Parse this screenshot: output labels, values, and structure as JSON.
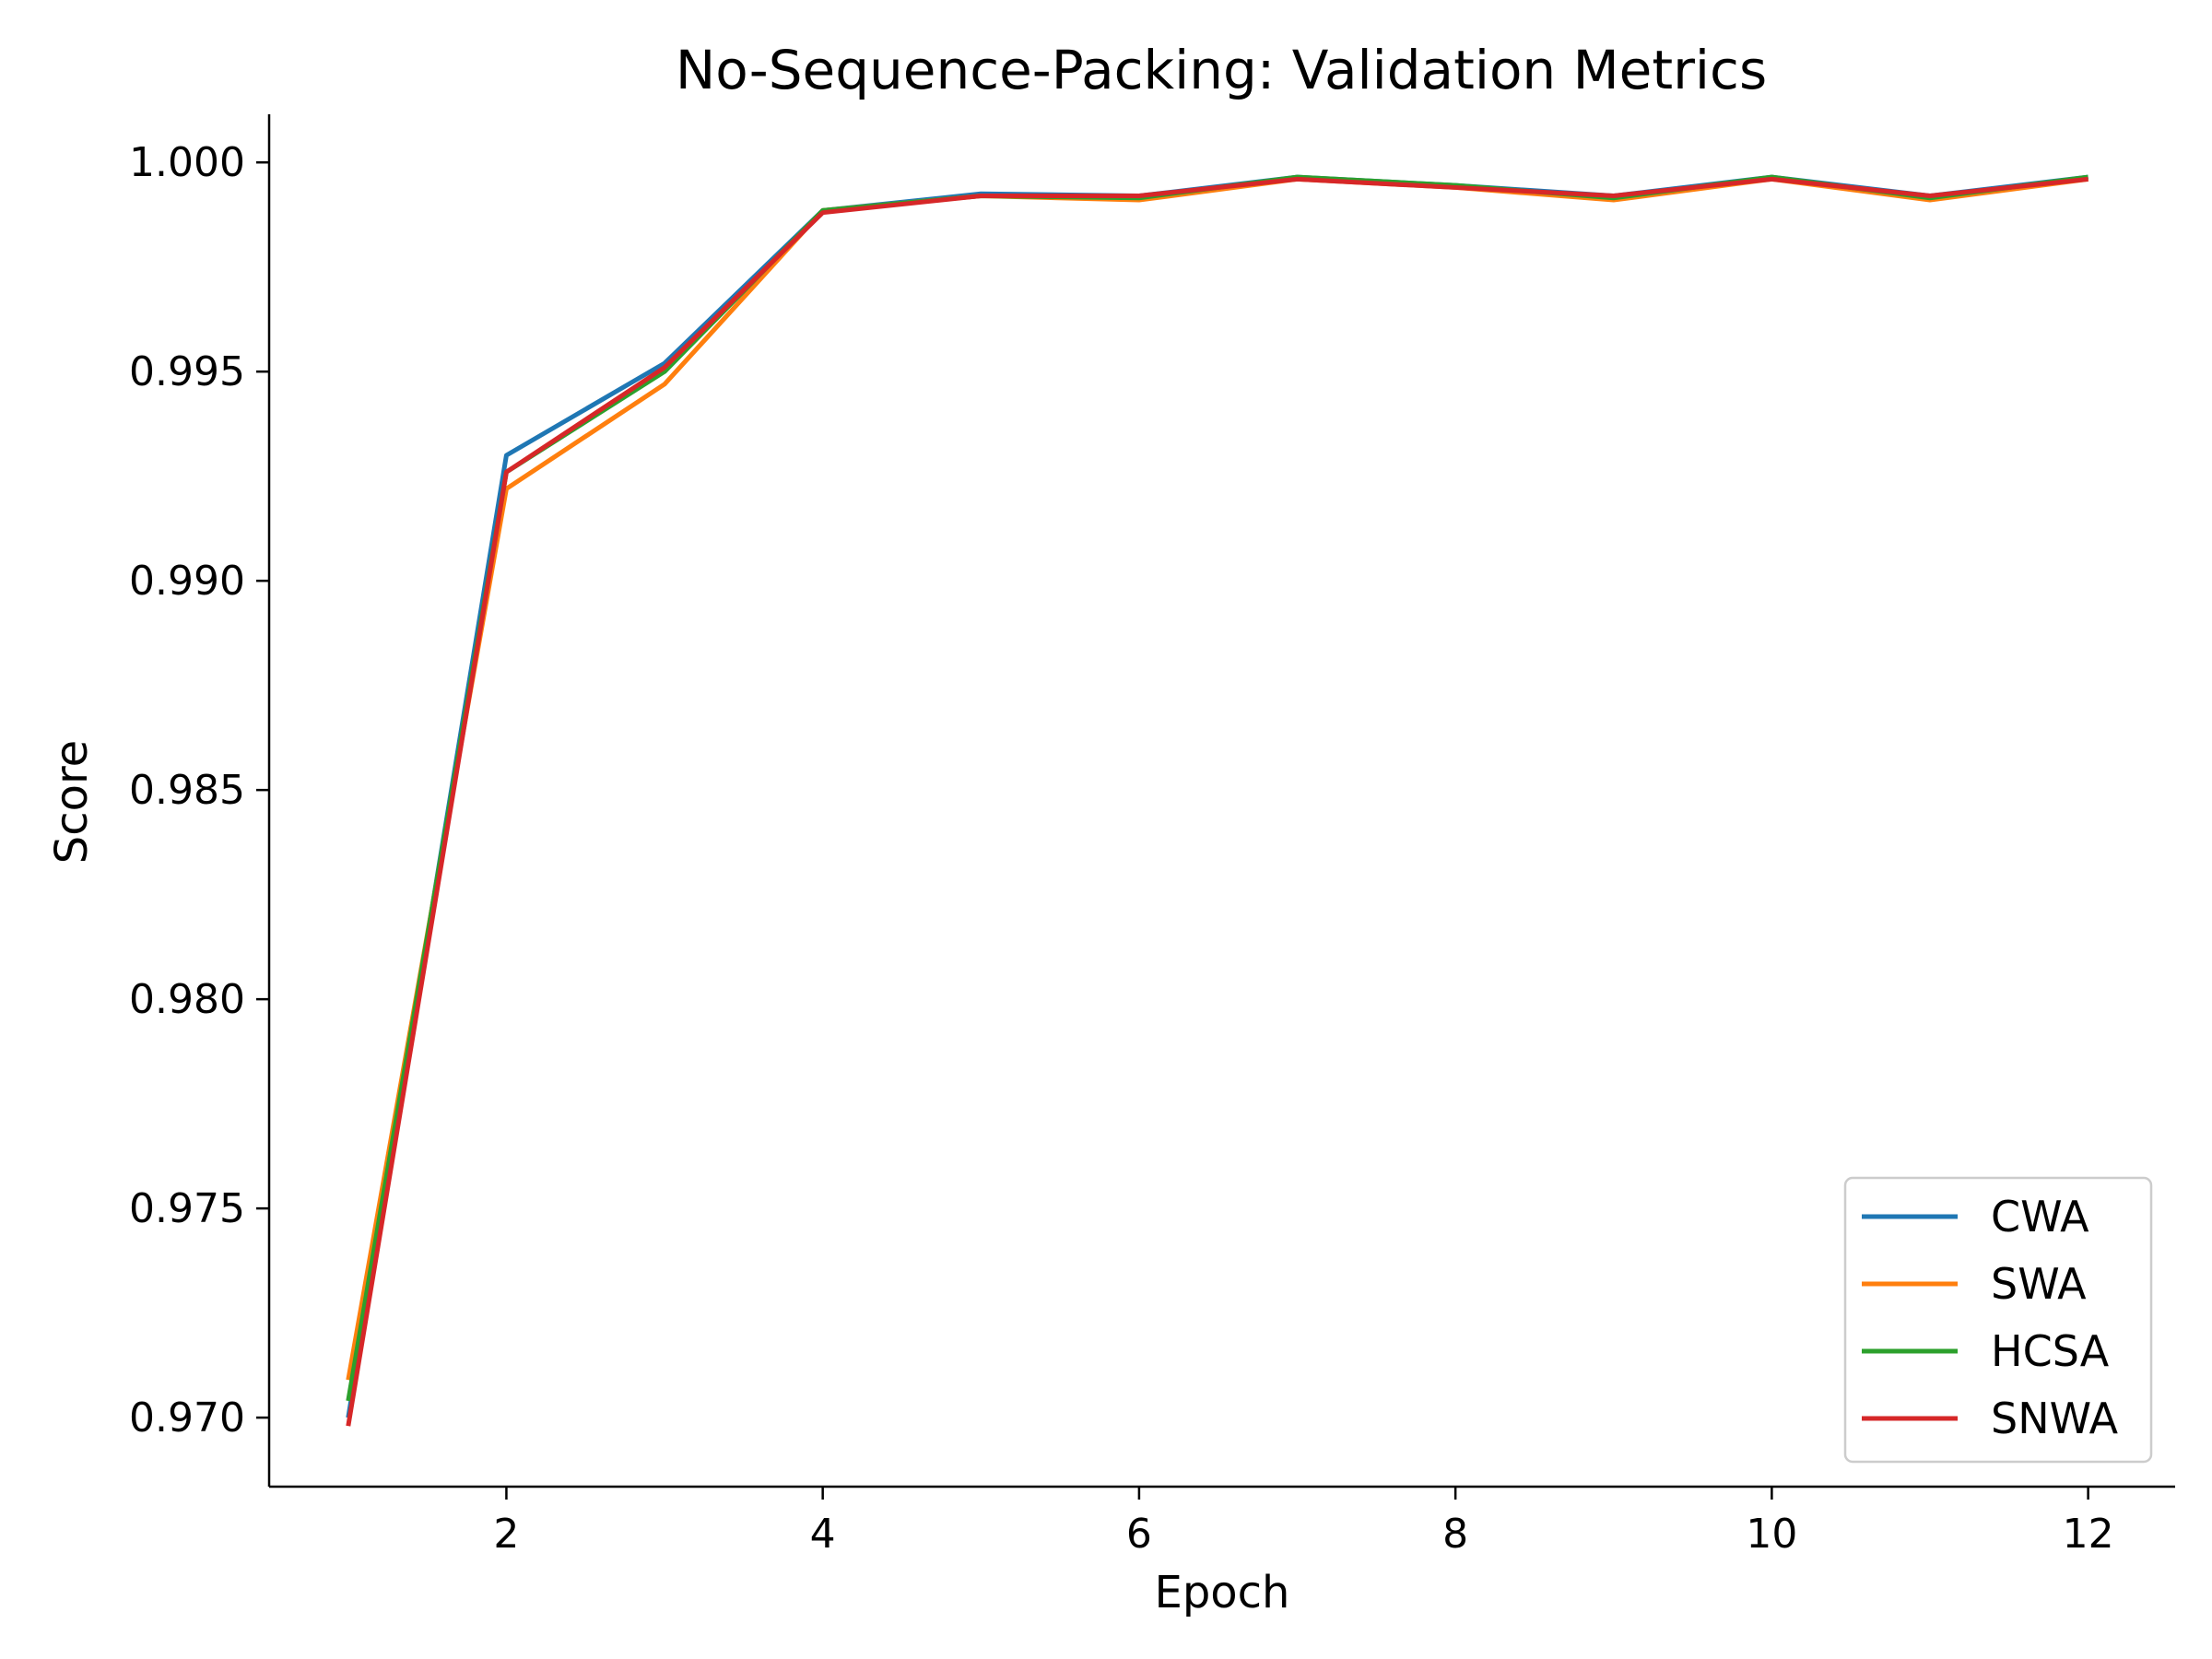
{
  "chart_data": {
    "type": "line",
    "title": "No-Sequence-Packing: Validation Metrics",
    "xlabel": "Epoch",
    "ylabel": "Score",
    "x": [
      1,
      2,
      3,
      4,
      5,
      6,
      7,
      8,
      9,
      10,
      11,
      12
    ],
    "xlim": [
      0.5,
      12.55
    ],
    "ylim": [
      0.96835,
      1.00115
    ],
    "xticks": [
      2,
      4,
      6,
      8,
      10,
      12
    ],
    "xtick_labels": [
      "2",
      "4",
      "6",
      "8",
      "10",
      "12"
    ],
    "yticks": [
      0.97,
      0.975,
      0.98,
      0.985,
      0.99,
      0.995,
      1.0
    ],
    "ytick_labels": [
      "0.970",
      "0.975",
      "0.980",
      "0.985",
      "0.990",
      "0.995",
      "1.000"
    ],
    "grid": false,
    "legend_position": "bottom-right",
    "series": [
      {
        "name": "CWA",
        "color": "#1f77b4",
        "values": [
          0.97,
          0.993,
          0.9952,
          0.99885,
          0.99925,
          0.9992,
          0.99965,
          0.99945,
          0.9992,
          0.99965,
          0.9992,
          0.99965
        ]
      },
      {
        "name": "SWA",
        "color": "#ff7f0e",
        "values": [
          0.9709,
          0.9922,
          0.9947,
          0.99885,
          0.9992,
          0.9991,
          0.9996,
          0.9994,
          0.9991,
          0.9996,
          0.9991,
          0.9996
        ]
      },
      {
        "name": "HCSA",
        "color": "#2ca02c",
        "values": [
          0.9704,
          0.9926,
          0.995,
          0.99885,
          0.9992,
          0.99915,
          0.99965,
          0.99945,
          0.99915,
          0.99965,
          0.99915,
          0.99965
        ]
      },
      {
        "name": "SNWA",
        "color": "#d62728",
        "values": [
          0.9698,
          0.9926,
          0.9951,
          0.9988,
          0.9992,
          0.9992,
          0.9996,
          0.9994,
          0.9992,
          0.9996,
          0.9992,
          0.9996
        ]
      }
    ]
  }
}
